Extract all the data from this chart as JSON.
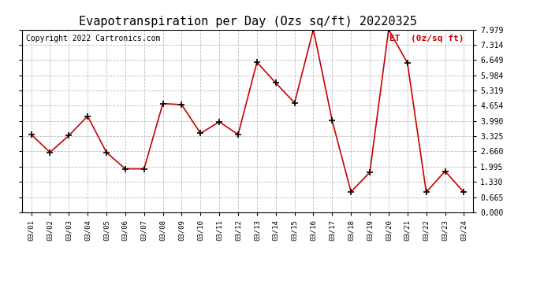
{
  "title": "Evapotranspiration per Day (Ozs sq/ft) 20220325",
  "copyright_text": "Copyright 2022 Cartronics.com",
  "legend_label": "ET  (0z/sq ft)",
  "dates": [
    "03/01",
    "03/02",
    "03/03",
    "03/04",
    "03/05",
    "03/06",
    "03/07",
    "03/08",
    "03/09",
    "03/10",
    "03/11",
    "03/12",
    "03/13",
    "03/14",
    "03/15",
    "03/16",
    "03/17",
    "03/18",
    "03/19",
    "03/20",
    "03/21",
    "03/22",
    "03/23",
    "03/24"
  ],
  "values": [
    3.4,
    2.62,
    3.35,
    4.2,
    2.62,
    1.9,
    1.9,
    4.75,
    4.7,
    3.45,
    3.95,
    3.4,
    6.55,
    5.65,
    4.78,
    7.98,
    4.0,
    0.9,
    1.75,
    7.98,
    6.52,
    0.88,
    1.8,
    0.88
  ],
  "line_color": "#cc0000",
  "marker_color": "#000000",
  "marker": "+",
  "ylim": [
    0.0,
    7.979
  ],
  "yticks": [
    0.0,
    0.665,
    1.33,
    1.995,
    2.66,
    3.325,
    3.99,
    4.654,
    5.319,
    5.984,
    6.649,
    7.314,
    7.979
  ],
  "grid_color": "#bbbbbb",
  "bg_color": "#ffffff",
  "title_fontsize": 11,
  "copyright_fontsize": 7,
  "legend_fontsize": 8
}
